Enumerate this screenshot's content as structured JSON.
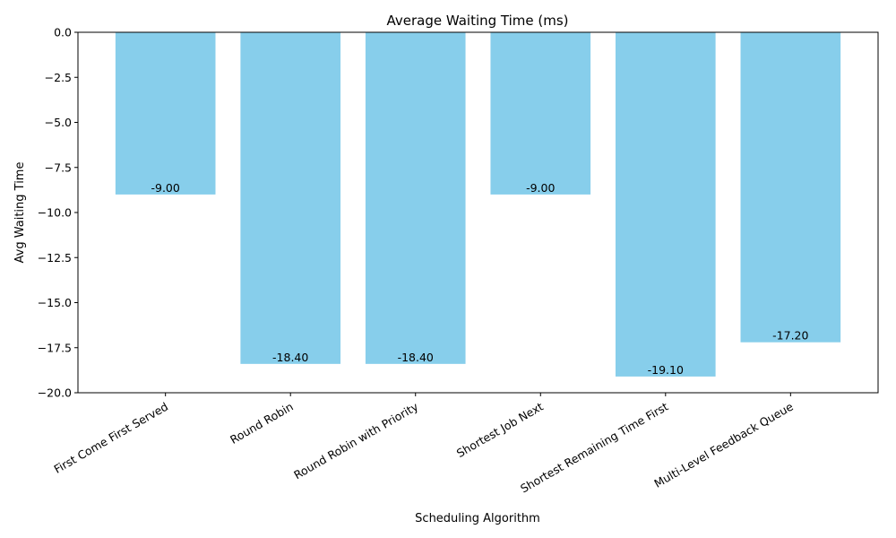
{
  "chart_data": {
    "type": "bar",
    "title": "Average Waiting Time (ms)",
    "xlabel": "Scheduling Algorithm",
    "ylabel": "Avg Waiting Time",
    "categories": [
      "First Come First Served",
      "Round Robin",
      "Round Robin with Priority",
      "Shortest Job Next",
      "Shortest Remaining Time First",
      "Multi-Level Feedback Queue"
    ],
    "values": [
      -9.0,
      -18.4,
      -18.4,
      -9.0,
      -19.1,
      -17.2
    ],
    "data_labels": [
      "-9.00",
      "-18.40",
      "-18.40",
      "-9.00",
      "-19.10",
      "-17.20"
    ],
    "ylim": [
      -20.0,
      0.0
    ],
    "yticks": [
      0.0,
      -2.5,
      -5.0,
      -7.5,
      -10.0,
      -12.5,
      -15.0,
      -17.5,
      -20.0
    ],
    "ytick_labels": [
      "0.0",
      "−2.5",
      "−5.0",
      "−7.5",
      "−10.0",
      "−12.5",
      "−15.0",
      "−17.5",
      "−20.0"
    ],
    "bar_color": "#87CEEB",
    "grid": false,
    "legend": "none"
  }
}
